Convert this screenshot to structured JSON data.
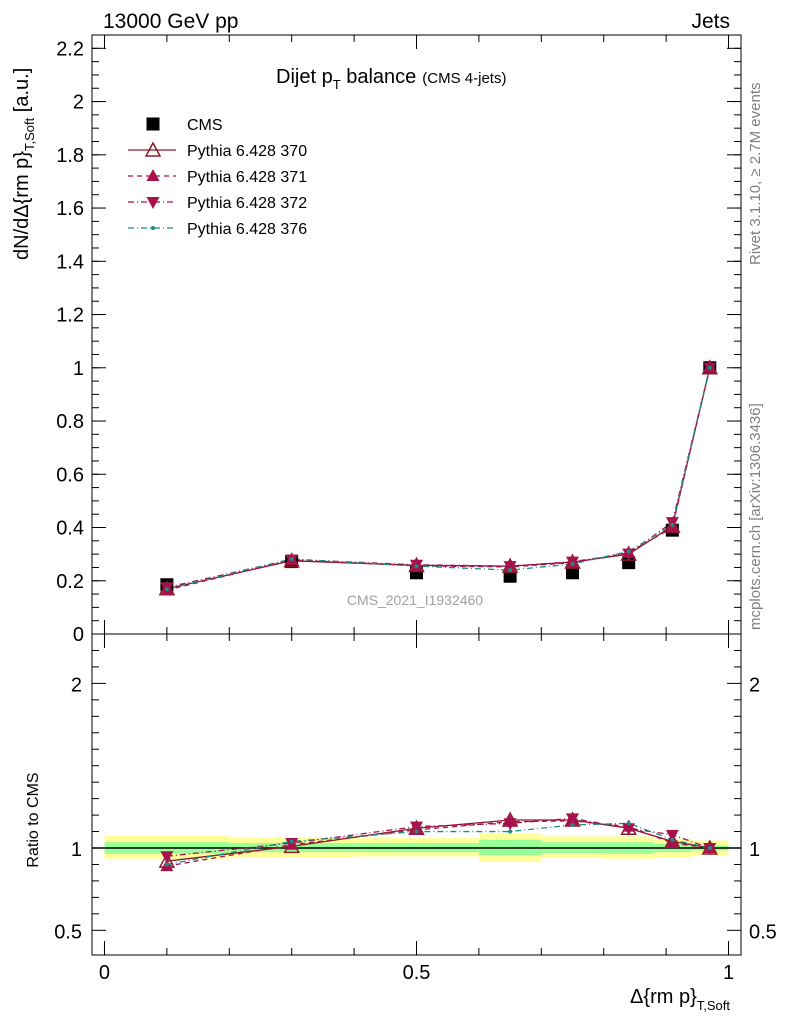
{
  "header": {
    "left": "13000 GeV pp",
    "right": "Jets"
  },
  "side_labels": {
    "rivet": "Rivet 3.1.10, ≥ 2.7M events",
    "mcplots": "mcplots.cern.ch [arXiv:1306.3436]"
  },
  "watermark": "CMS_2021_I1932460",
  "chart_data": [
    {
      "type": "scatter",
      "title": "Dijet p_T balance",
      "title_main": "Dijet p",
      "title_sub": "T",
      "title_rest": " balance",
      "title_note": "(CMS 4-jets)",
      "ylabel_main": "dN/dΔ{rm p}",
      "ylabel_sub": "T,Soft",
      "ylabel_unit": " [a.u.]",
      "xlim": [
        -0.02,
        1.02
      ],
      "ylim": [
        0,
        2.25
      ],
      "yticks": [
        {
          "v": 0,
          "label": "0"
        },
        {
          "v": 0.2,
          "label": "0.2"
        },
        {
          "v": 0.4,
          "label": "0.4"
        },
        {
          "v": 0.6,
          "label": "0.6"
        },
        {
          "v": 0.8,
          "label": "0.8"
        },
        {
          "v": 1.0,
          "label": "1"
        },
        {
          "v": 1.2,
          "label": "1.2"
        },
        {
          "v": 1.4,
          "label": "1.4"
        },
        {
          "v": 1.6,
          "label": "1.6"
        },
        {
          "v": 1.8,
          "label": "1.8"
        },
        {
          "v": 2.0,
          "label": "2"
        },
        {
          "v": 2.2,
          "label": "2.2"
        }
      ],
      "x": [
        0.1,
        0.3,
        0.5,
        0.65,
        0.75,
        0.84,
        0.91,
        0.97
      ],
      "series": [
        {
          "name": "CMS",
          "marker": "square",
          "color": "#000000",
          "line": "none",
          "values": [
            0.185,
            0.272,
            0.23,
            0.217,
            0.23,
            0.268,
            0.39,
            1.0
          ]
        },
        {
          "name": "Pythia 6.428 370",
          "marker": "triangle-open",
          "color": "#8b1a2a",
          "line": "solid",
          "values": [
            0.17,
            0.275,
            0.258,
            0.255,
            0.27,
            0.3,
            0.405,
            1.0
          ]
        },
        {
          "name": "Pythia 6.428 371",
          "marker": "triangle-up",
          "color": "#a8124c",
          "line": "dashed",
          "values": [
            0.165,
            0.278,
            0.256,
            0.252,
            0.268,
            0.305,
            0.4,
            1.0
          ]
        },
        {
          "name": "Pythia 6.428 372",
          "marker": "triangle-down",
          "color": "#a8124c",
          "line": "dashdot",
          "values": [
            0.175,
            0.28,
            0.26,
            0.255,
            0.272,
            0.302,
            0.42,
            1.0
          ]
        },
        {
          "name": "Pythia 6.428 376",
          "marker": "dot",
          "color": "#178f85",
          "line": "dashdot",
          "values": [
            0.168,
            0.282,
            0.255,
            0.24,
            0.263,
            0.31,
            0.41,
            1.0
          ]
        }
      ]
    },
    {
      "type": "scatter",
      "ylabel": "Ratio to CMS",
      "xlabel_main": "Δ{rm p}",
      "xlabel_sub": "T,Soft",
      "xlim": [
        -0.02,
        1.02
      ],
      "ylim": [
        0.35,
        2.3
      ],
      "xticks": [
        {
          "v": 0,
          "label": "0"
        },
        {
          "v": 0.5,
          "label": "0.5"
        },
        {
          "v": 1,
          "label": "1"
        }
      ],
      "yticks": [
        {
          "v": 0.5,
          "label": "0.5"
        },
        {
          "v": 1,
          "label": "1"
        },
        {
          "v": 2,
          "label": "2"
        }
      ],
      "reference": 1,
      "bands": [
        {
          "x0": 0.0,
          "x1": 0.2,
          "yellow": [
            0.935,
            1.075
          ],
          "green": [
            0.965,
            1.035
          ]
        },
        {
          "x0": 0.2,
          "x1": 0.4,
          "yellow": [
            0.945,
            1.065
          ],
          "green": [
            0.975,
            1.03
          ]
        },
        {
          "x0": 0.4,
          "x1": 0.6,
          "yellow": [
            0.948,
            1.06
          ],
          "green": [
            0.975,
            1.03
          ]
        },
        {
          "x0": 0.6,
          "x1": 0.7,
          "yellow": [
            0.915,
            1.09
          ],
          "green": [
            0.955,
            1.05
          ]
        },
        {
          "x0": 0.7,
          "x1": 0.8,
          "yellow": [
            0.94,
            1.07
          ],
          "green": [
            0.97,
            1.035
          ]
        },
        {
          "x0": 0.8,
          "x1": 0.88,
          "yellow": [
            0.935,
            1.07
          ],
          "green": [
            0.965,
            1.035
          ]
        },
        {
          "x0": 0.88,
          "x1": 0.94,
          "yellow": [
            0.945,
            1.055
          ],
          "green": [
            0.975,
            1.025
          ]
        },
        {
          "x0": 0.94,
          "x1": 1.0,
          "yellow": [
            0.955,
            1.045
          ],
          "green": [
            0.985,
            1.015
          ]
        }
      ],
      "x": [
        0.1,
        0.3,
        0.5,
        0.65,
        0.75,
        0.84,
        0.91,
        0.97
      ],
      "series": [
        {
          "name": "Pythia 6.428 370",
          "marker": "triangle-open",
          "color": "#8b1a2a",
          "line": "solid",
          "values": [
            0.92,
            1.01,
            1.12,
            1.17,
            1.17,
            1.12,
            1.04,
            1.0
          ]
        },
        {
          "name": "Pythia 6.428 371",
          "marker": "triangle-up",
          "color": "#a8124c",
          "line": "dashed",
          "values": [
            0.89,
            1.02,
            1.11,
            1.16,
            1.165,
            1.13,
            1.03,
            1.0
          ]
        },
        {
          "name": "Pythia 6.428 372",
          "marker": "triangle-down",
          "color": "#a8124c",
          "line": "dashdot",
          "values": [
            0.95,
            1.03,
            1.13,
            1.15,
            1.18,
            1.12,
            1.08,
            1.0
          ]
        },
        {
          "name": "Pythia 6.428 376",
          "marker": "dot",
          "color": "#178f85",
          "line": "dashdot",
          "values": [
            0.9,
            1.04,
            1.1,
            1.1,
            1.14,
            1.15,
            1.05,
            1.0
          ]
        }
      ]
    }
  ]
}
